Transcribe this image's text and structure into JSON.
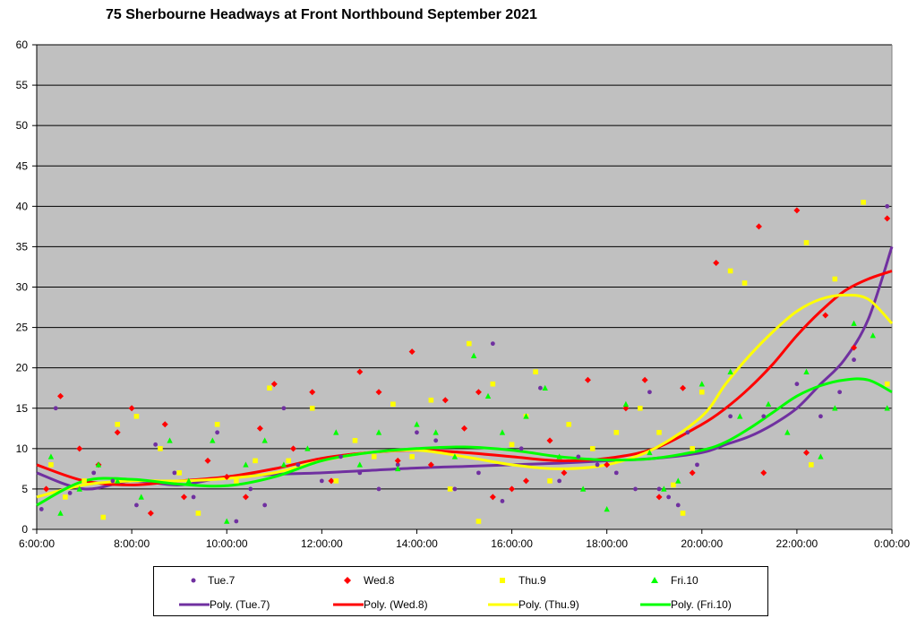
{
  "chart_data": {
    "type": "scatter",
    "title": "75 Sherbourne Headways at Front Northbound September 2021",
    "xlabel": "",
    "ylabel": "",
    "x_unit": "hour of day",
    "xlim": [
      6,
      24
    ],
    "ylim": [
      0,
      60
    ],
    "y_ticks": [
      "0",
      "5",
      "10",
      "15",
      "20",
      "25",
      "30",
      "35",
      "40",
      "45",
      "50",
      "55",
      "60"
    ],
    "x_ticks": [
      "6:00:00",
      "8:00:00",
      "10:00:00",
      "12:00:00",
      "14:00:00",
      "16:00:00",
      "18:00:00",
      "20:00:00",
      "22:00:00",
      "0:00:00"
    ],
    "grid": true,
    "plot_background": "#C0C0C0",
    "legend_position": "bottom",
    "series": [
      {
        "name": "Tue.7",
        "marker": "circle",
        "color": "#7030A0",
        "points": [
          [
            6.1,
            2.5
          ],
          [
            6.4,
            15
          ],
          [
            6.7,
            4.5
          ],
          [
            7.2,
            7
          ],
          [
            7.6,
            6
          ],
          [
            8.1,
            3
          ],
          [
            8.5,
            10.5
          ],
          [
            8.9,
            7
          ],
          [
            9.3,
            4
          ],
          [
            9.8,
            12
          ],
          [
            10.2,
            1
          ],
          [
            10.5,
            5
          ],
          [
            10.8,
            3
          ],
          [
            11.2,
            15
          ],
          [
            11.5,
            8
          ],
          [
            12,
            6
          ],
          [
            12.4,
            9
          ],
          [
            12.8,
            7
          ],
          [
            13.2,
            5
          ],
          [
            13.6,
            8
          ],
          [
            14,
            12
          ],
          [
            14.4,
            11
          ],
          [
            14.8,
            5
          ],
          [
            15.3,
            7
          ],
          [
            15.6,
            23
          ],
          [
            15.8,
            3.5
          ],
          [
            16.2,
            10
          ],
          [
            16.6,
            17.5
          ],
          [
            17,
            6
          ],
          [
            17.4,
            9
          ],
          [
            17.8,
            8
          ],
          [
            18.2,
            7
          ],
          [
            18.6,
            5
          ],
          [
            18.9,
            17
          ],
          [
            19.1,
            5
          ],
          [
            19.3,
            4
          ],
          [
            19.5,
            3
          ],
          [
            19.7,
            12
          ],
          [
            19.9,
            8
          ],
          [
            20.6,
            14
          ],
          [
            21.3,
            14
          ],
          [
            22,
            18
          ],
          [
            22.5,
            14
          ],
          [
            22.9,
            17
          ],
          [
            23.2,
            21
          ],
          [
            23.9,
            40
          ]
        ],
        "trend": {
          "name": "Poly. (Tue.7)",
          "color": "#7030A0",
          "x": [
            6,
            7,
            8,
            9,
            10,
            11,
            12,
            13,
            14,
            15,
            16,
            17,
            18,
            19,
            20,
            20.5,
            21,
            21.5,
            22,
            22.5,
            23,
            23.5,
            24
          ],
          "y": [
            7,
            5,
            6,
            5.5,
            6.5,
            6.8,
            7,
            7.3,
            7.6,
            7.8,
            8,
            8.2,
            8.5,
            8.8,
            9.5,
            10.5,
            11.5,
            13,
            15,
            18,
            21,
            26,
            35
          ]
        }
      },
      {
        "name": "Wed.8",
        "marker": "diamond",
        "color": "#FF0000",
        "points": [
          [
            6.2,
            5
          ],
          [
            6.5,
            16.5
          ],
          [
            6.9,
            10
          ],
          [
            7.3,
            8
          ],
          [
            7.7,
            12
          ],
          [
            8,
            15
          ],
          [
            8.4,
            2
          ],
          [
            8.7,
            13
          ],
          [
            9.1,
            4
          ],
          [
            9.6,
            8.5
          ],
          [
            10,
            6.5
          ],
          [
            10.4,
            4
          ],
          [
            10.7,
            12.5
          ],
          [
            11,
            18
          ],
          [
            11.4,
            10
          ],
          [
            11.8,
            17
          ],
          [
            12.2,
            6
          ],
          [
            12.8,
            19.5
          ],
          [
            13.2,
            17
          ],
          [
            13.6,
            8.5
          ],
          [
            13.9,
            22
          ],
          [
            14.3,
            8
          ],
          [
            14.6,
            16
          ],
          [
            15,
            12.5
          ],
          [
            15.3,
            17
          ],
          [
            15.6,
            4
          ],
          [
            16,
            5
          ],
          [
            16.3,
            6
          ],
          [
            16.8,
            11
          ],
          [
            17.1,
            7
          ],
          [
            17.6,
            18.5
          ],
          [
            18,
            8
          ],
          [
            18.4,
            15
          ],
          [
            18.8,
            18.5
          ],
          [
            19.1,
            4
          ],
          [
            19.6,
            17.5
          ],
          [
            19.8,
            7
          ],
          [
            20.3,
            33
          ],
          [
            21.2,
            37.5
          ],
          [
            21.3,
            7
          ],
          [
            22,
            39.5
          ],
          [
            22.2,
            9.5
          ],
          [
            22.6,
            26.5
          ],
          [
            23.2,
            22.5
          ],
          [
            23.9,
            38.5
          ]
        ],
        "trend": {
          "name": "Poly. (Wed.8)",
          "color": "#FF0000",
          "x": [
            6,
            7,
            8,
            9,
            10,
            11,
            12,
            13,
            14,
            15,
            16,
            17,
            18,
            19,
            20,
            20.5,
            21,
            21.5,
            22,
            22.5,
            23,
            23.5,
            24
          ],
          "y": [
            8,
            6,
            5.5,
            6,
            6.5,
            7.5,
            8.8,
            9.5,
            9.8,
            9.5,
            9,
            8.5,
            8.8,
            10,
            13,
            15,
            17.5,
            20.5,
            24,
            27,
            29.5,
            31,
            32
          ]
        }
      },
      {
        "name": "Thu.9",
        "marker": "square",
        "color": "#FFFF00",
        "points": [
          [
            6.3,
            8
          ],
          [
            6.6,
            4
          ],
          [
            7,
            6
          ],
          [
            7.4,
            1.5
          ],
          [
            7.7,
            13
          ],
          [
            8.1,
            14
          ],
          [
            8.6,
            10
          ],
          [
            9,
            7
          ],
          [
            9.4,
            2
          ],
          [
            9.8,
            13
          ],
          [
            10.2,
            6
          ],
          [
            10.6,
            8.5
          ],
          [
            10.9,
            17.5
          ],
          [
            11.3,
            8.5
          ],
          [
            11.8,
            15
          ],
          [
            12.3,
            6
          ],
          [
            12.7,
            11
          ],
          [
            13.1,
            9
          ],
          [
            13.5,
            15.5
          ],
          [
            13.9,
            9
          ],
          [
            14.3,
            16
          ],
          [
            14.7,
            5
          ],
          [
            15.1,
            23
          ],
          [
            15.3,
            1
          ],
          [
            15.6,
            18
          ],
          [
            16,
            10.5
          ],
          [
            16.3,
            14
          ],
          [
            16.5,
            19.5
          ],
          [
            16.8,
            6
          ],
          [
            17.2,
            13
          ],
          [
            17.7,
            10
          ],
          [
            18.2,
            12
          ],
          [
            18.7,
            15
          ],
          [
            19.1,
            12
          ],
          [
            19.4,
            5.5
          ],
          [
            19.6,
            2
          ],
          [
            19.8,
            10
          ],
          [
            20,
            17
          ],
          [
            20.6,
            32
          ],
          [
            20.9,
            30.5
          ],
          [
            22.2,
            35.5
          ],
          [
            22.3,
            8
          ],
          [
            22.8,
            31
          ],
          [
            23.4,
            40.5
          ],
          [
            23.9,
            18
          ]
        ],
        "trend": {
          "name": "Poly. (Thu.9)",
          "color": "#FFFF00",
          "x": [
            6,
            7,
            8,
            9,
            10,
            11,
            12,
            13,
            14,
            15,
            16,
            17,
            18,
            19,
            20,
            20.5,
            21,
            21.5,
            22,
            22.5,
            23,
            23.5,
            24
          ],
          "y": [
            4,
            5.5,
            6,
            6,
            6.3,
            7,
            8.5,
            9.5,
            9.8,
            9,
            8,
            7.5,
            8,
            10,
            14,
            18,
            21.5,
            24.5,
            27,
            28.5,
            29,
            28.5,
            25.5
          ]
        }
      },
      {
        "name": "Fri.10",
        "marker": "triangle",
        "color": "#00FF00",
        "points": [
          [
            6.3,
            9
          ],
          [
            6.5,
            2
          ],
          [
            6.9,
            5
          ],
          [
            7.3,
            8
          ],
          [
            7.7,
            6
          ],
          [
            8.2,
            4
          ],
          [
            8.8,
            11
          ],
          [
            9.2,
            6
          ],
          [
            9.7,
            11
          ],
          [
            10,
            1
          ],
          [
            10.4,
            8
          ],
          [
            10.8,
            11
          ],
          [
            11.2,
            8
          ],
          [
            11.7,
            10
          ],
          [
            12.3,
            12
          ],
          [
            12.8,
            8
          ],
          [
            13.2,
            12
          ],
          [
            13.6,
            7.5
          ],
          [
            14,
            13
          ],
          [
            14.4,
            12
          ],
          [
            14.8,
            9
          ],
          [
            15.2,
            21.5
          ],
          [
            15.5,
            16.5
          ],
          [
            15.8,
            12
          ],
          [
            16.3,
            14
          ],
          [
            16.7,
            17.5
          ],
          [
            17,
            9
          ],
          [
            17.5,
            5
          ],
          [
            18,
            2.5
          ],
          [
            18.4,
            15.5
          ],
          [
            18.9,
            9.5
          ],
          [
            19.2,
            5
          ],
          [
            19.5,
            6
          ],
          [
            20,
            18
          ],
          [
            20.6,
            19.5
          ],
          [
            20.8,
            14
          ],
          [
            21.4,
            15.5
          ],
          [
            21.8,
            12
          ],
          [
            22.2,
            19.5
          ],
          [
            22.5,
            9
          ],
          [
            22.8,
            15
          ],
          [
            23.2,
            25.5
          ],
          [
            23.6,
            24
          ],
          [
            23.9,
            15
          ]
        ],
        "trend": {
          "name": "Poly. (Fri.10)",
          "color": "#00FF00",
          "x": [
            6,
            7,
            8,
            9,
            10,
            11,
            12,
            13,
            14,
            15,
            16,
            17,
            18,
            19,
            20,
            20.5,
            21,
            21.5,
            22,
            22.5,
            23,
            23.5,
            24
          ],
          "y": [
            3,
            6,
            6.2,
            5.6,
            5.4,
            6.5,
            8.5,
            9.5,
            10,
            10.2,
            9.8,
            9,
            8.6,
            8.8,
            9.8,
            10.8,
            12.5,
            14.5,
            16.5,
            17.8,
            18.5,
            18.5,
            17
          ]
        }
      }
    ]
  }
}
